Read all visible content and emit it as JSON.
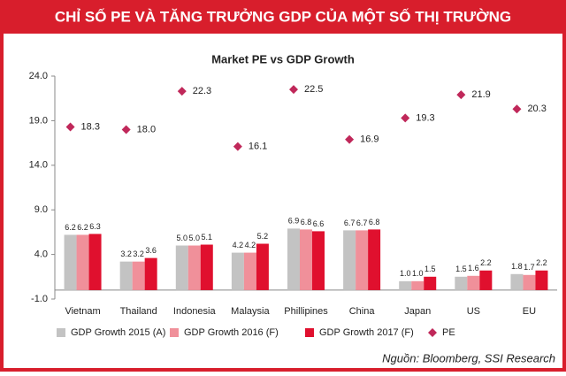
{
  "header": {
    "title": "CHỈ SỐ PE VÀ TĂNG TRƯỞNG GDP CỦA MỘT SỐ THỊ TRƯỜNG"
  },
  "chart_data": {
    "type": "bar",
    "title": "Market PE vs GDP Growth",
    "categories": [
      "Vietnam",
      "Thailand",
      "Indonesia",
      "Malaysia",
      "Phillipines",
      "China",
      "Japan",
      "US",
      "EU"
    ],
    "series": [
      {
        "name": "GDP Growth 2015 (A)",
        "type": "bar",
        "color": "#c3c3c3",
        "values": [
          6.2,
          3.2,
          5.0,
          4.2,
          6.9,
          6.7,
          1.0,
          1.5,
          1.8
        ],
        "value_labels": [
          "6.2",
          "3.2",
          "5.0",
          "4.2",
          "6.9",
          "6.7",
          "1.0",
          "1.5",
          "1.8"
        ]
      },
      {
        "name": "GDP Growth 2016 (F)",
        "type": "bar",
        "color": "#f0909a",
        "values": [
          6.2,
          3.2,
          5.0,
          4.2,
          6.8,
          6.7,
          1.0,
          1.6,
          1.7
        ],
        "value_labels": [
          "6.2",
          "3.2",
          "5.0",
          "4.2",
          "6.8",
          "6.7",
          "1.0",
          "1.6",
          "1.7"
        ]
      },
      {
        "name": "GDP Growth 2017 (F)",
        "type": "bar",
        "color": "#e0102e",
        "values": [
          6.3,
          3.6,
          5.1,
          5.2,
          6.6,
          6.8,
          1.5,
          2.2,
          2.2
        ],
        "value_labels": [
          "6.3",
          "3.6",
          "5.1",
          "5.2",
          "6.6",
          "6.8",
          "1.5",
          "2.2",
          "2.2"
        ]
      },
      {
        "name": "PE",
        "type": "scatter",
        "color": "#c0285a",
        "values": [
          18.3,
          18.0,
          22.3,
          16.1,
          22.5,
          16.9,
          19.3,
          21.9,
          20.3
        ],
        "value_labels": [
          "18.3",
          "18.0",
          "22.3",
          "16.1",
          "22.5",
          "16.9",
          "19.3",
          "21.9",
          "20.3"
        ]
      }
    ],
    "ylim": [
      -1,
      24
    ],
    "yticks": [
      {
        "value": -1,
        "label": "-1.0"
      },
      {
        "value": 4,
        "label": "4.0"
      },
      {
        "value": 9,
        "label": "9.0"
      },
      {
        "value": 14,
        "label": "14.0"
      },
      {
        "value": 19,
        "label": "19.0"
      },
      {
        "value": 24,
        "label": "24.0"
      }
    ],
    "legend": "bottom"
  },
  "source": "Nguồn: Bloomberg, SSI Research"
}
